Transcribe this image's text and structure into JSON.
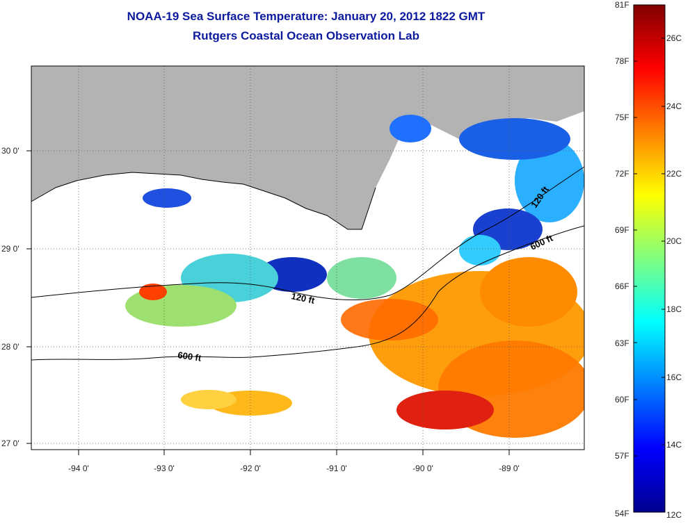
{
  "title_line1": "NOAA-19 Sea Surface Temperature:  January 20, 2012 1822 GMT",
  "title_line2": "Rutgers Coastal Ocean Observation Lab",
  "lat_labels": [
    "30 0'",
    "29 0'",
    "28 0'",
    "27 0'"
  ],
  "lon_labels": [
    "-94 0'",
    "-93 0'",
    "-92 0'",
    "-91 0'",
    "-90 0'",
    "-89 0'"
  ],
  "isobaths": [
    "120 ft",
    "120 ft",
    "600 ft",
    "600 ft"
  ],
  "colorbar_f": [
    "81F",
    "78F",
    "75F",
    "72F",
    "69F",
    "66F",
    "63F",
    "60F",
    "57F",
    "54F"
  ],
  "colorbar_c": [
    "26C",
    "24C",
    "22C",
    "20C",
    "18C",
    "16C",
    "14C",
    "12C"
  ],
  "colors": {
    "land": "#b3b3b3",
    "title": "#0b1a9e",
    "no_data": "#ffffff"
  }
}
